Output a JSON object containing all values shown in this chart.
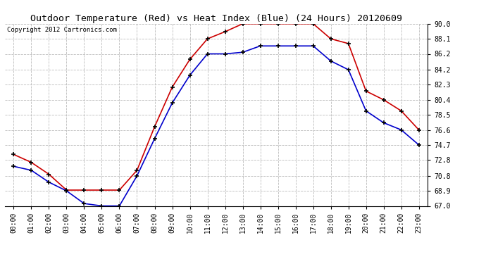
{
  "title": "Outdoor Temperature (Red) vs Heat Index (Blue) (24 Hours) 20120609",
  "copyright_text": "Copyright 2012 Cartronics.com",
  "hours": [
    "00:00",
    "01:00",
    "02:00",
    "03:00",
    "04:00",
    "05:00",
    "06:00",
    "07:00",
    "08:00",
    "09:00",
    "10:00",
    "11:00",
    "12:00",
    "13:00",
    "14:00",
    "15:00",
    "16:00",
    "17:00",
    "18:00",
    "19:00",
    "20:00",
    "21:00",
    "22:00",
    "23:00"
  ],
  "temp_red": [
    73.5,
    72.5,
    71.0,
    69.0,
    69.0,
    69.0,
    69.0,
    71.5,
    77.0,
    82.0,
    85.5,
    88.1,
    89.0,
    90.0,
    90.0,
    90.0,
    90.0,
    90.0,
    88.1,
    87.5,
    81.5,
    80.4,
    79.0,
    76.6
  ],
  "heat_blue": [
    72.0,
    71.5,
    70.0,
    68.9,
    67.3,
    67.0,
    67.0,
    70.8,
    75.5,
    80.0,
    83.5,
    86.2,
    86.2,
    86.4,
    87.2,
    87.2,
    87.2,
    87.2,
    85.3,
    84.2,
    79.0,
    77.5,
    76.6,
    74.7
  ],
  "y_ticks": [
    67.0,
    68.9,
    70.8,
    72.8,
    74.7,
    76.6,
    78.5,
    80.4,
    82.3,
    84.2,
    86.2,
    88.1,
    90.0
  ],
  "ylim": [
    67.0,
    90.0
  ],
  "red_color": "#cc0000",
  "blue_color": "#0000cc",
  "background_color": "#ffffff",
  "grid_color": "#bbbbbb",
  "title_fontsize": 9.5,
  "copyright_fontsize": 6.5,
  "tick_fontsize": 7.0,
  "figwidth": 6.9,
  "figheight": 3.75,
  "dpi": 100
}
